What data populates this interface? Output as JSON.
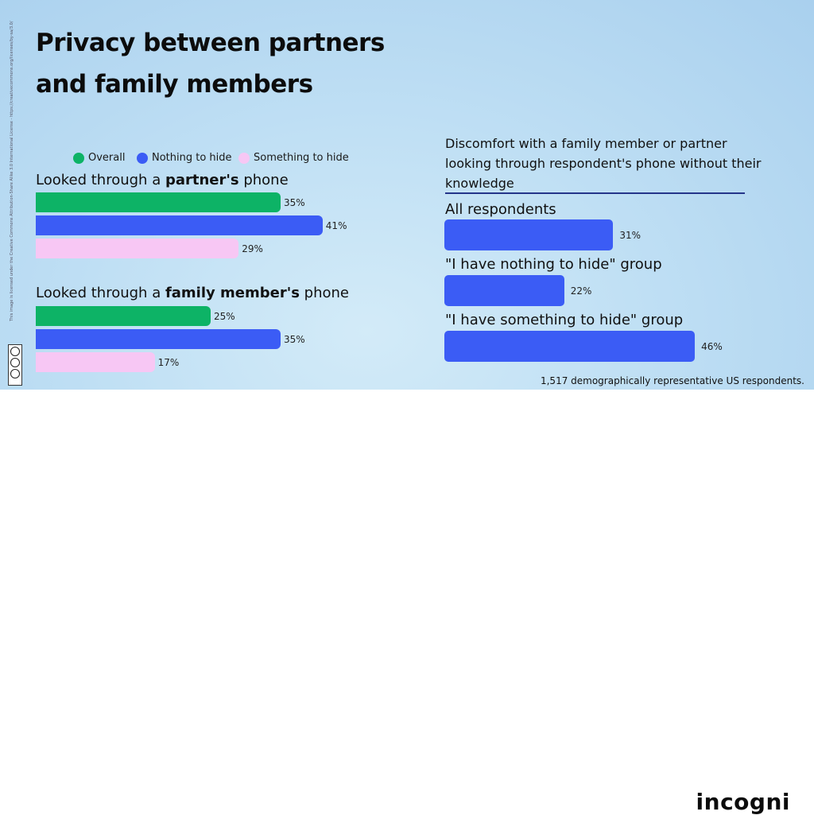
{
  "title": {
    "line1": "Privacy between partners",
    "line2": "and family members"
  },
  "legend": [
    {
      "label": "Overall",
      "color": "#0db366"
    },
    {
      "label": "Nothing to hide",
      "color": "#3b5cf5"
    },
    {
      "label": "Something to hide",
      "color": "#f7c7f4"
    }
  ],
  "groups": [
    {
      "title_pre": "Looked through a ",
      "title_bold": "partner's",
      "title_post": " phone"
    },
    {
      "title_pre": "Looked through a ",
      "title_bold": "family member's",
      "title_post": " phone"
    }
  ],
  "right": {
    "heading": "Discomfort with a family member or partner looking through respondent's phone without their knowledge",
    "labels": [
      "All respondents",
      "\"I have nothing to hide\" group",
      "\"I have something to hide\" group"
    ]
  },
  "note": "1,517 demographically representative US respondents.",
  "license_text": "This image is licensed under the Creative Commons Attribution-Share Alike 3.0 International License - https://creativecommons.org/licenses/by-sa/3.0/",
  "brand": "incogni",
  "chart_data": [
    {
      "type": "bar",
      "orientation": "horizontal",
      "categories": [
        "Looked through a partner's phone",
        "Looked through a family member's phone"
      ],
      "series": [
        {
          "name": "Overall",
          "values": [
            35,
            25
          ],
          "labels": [
            "35%",
            "25%"
          ],
          "color": "#0db366"
        },
        {
          "name": "Nothing to hide",
          "values": [
            41,
            35
          ],
          "labels": [
            "41%",
            "35%"
          ],
          "color": "#3b5cf5"
        },
        {
          "name": "Something to hide",
          "values": [
            29,
            17
          ],
          "labels": [
            "29%",
            "17%"
          ],
          "color": "#f7c7f4"
        }
      ],
      "unit": "%",
      "legend": "top",
      "grid": false
    },
    {
      "type": "bar",
      "orientation": "horizontal",
      "title": "Discomfort with a family member or partner looking through respondent's phone without their knowledge",
      "categories": [
        "All respondents",
        "\"I have nothing to hide\" group",
        "\"I have something to hide\" group"
      ],
      "values": [
        31,
        22,
        46
      ],
      "labels": [
        "31%",
        "22%",
        "46%"
      ],
      "color": "#3b5cf5",
      "unit": "%",
      "grid": false
    }
  ]
}
